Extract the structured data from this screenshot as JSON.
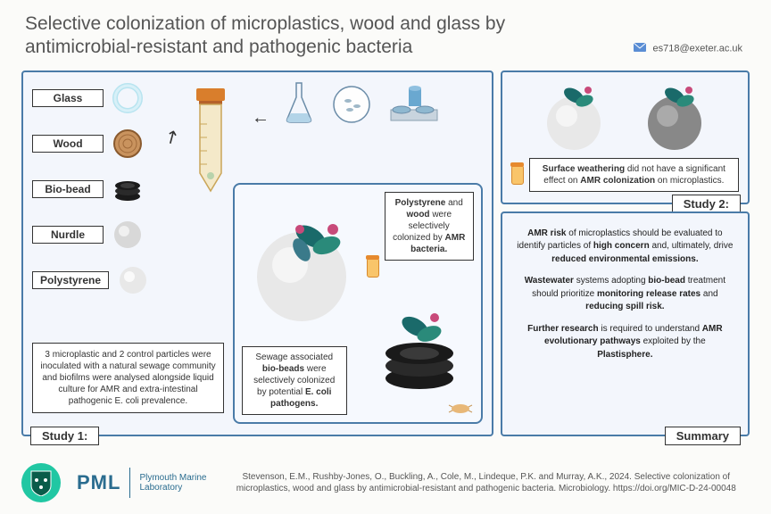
{
  "header": {
    "title_line1": "Selective colonization of microplastics, wood and glass by",
    "title_line2": "antimicrobial-resistant and pathogenic bacteria",
    "contact_email": "es718@exeter.ac.uk"
  },
  "colors": {
    "panel_border": "#4a7ba8",
    "panel_bg": "#f3f6fc",
    "page_bg": "#fbfbf9",
    "text": "#4a4a4a",
    "accent_teal": "#21c7a3",
    "pml_blue": "#2a6c8f",
    "tube_cap": "#d97e2c",
    "tube_body": "#f4e9c9"
  },
  "left_panel": {
    "label": "Study 1:",
    "materials": [
      "Glass",
      "Wood",
      "Bio-bead",
      "Nurdle",
      "Polystyrene"
    ],
    "material_icons": [
      "glass-ring",
      "wood-disc",
      "biobead-stack",
      "nurdle-sphere",
      "polystyrene-sphere"
    ],
    "note": "3 microplastic and 2 control particles were inoculated with a natural sewage community and biofilms were analysed alongside liquid culture for AMR and extra-intestinal pathogenic E. coli prevalence.",
    "inner_caption_top_html": "<span class='bold-text'>Polystyrene</span> and <span class='bold-text'>wood</span> were selectively colonized by <span class='bold-text'>AMR bacteria.</span>",
    "inner_caption_bottom_html": "Sewage associated <span class='bold-text'>bio-beads</span> were selectively colonized by potential <span class='bold-text'>E. coli pathogens.</span>"
  },
  "top_right_panel": {
    "label": "Study 2:",
    "caption_html": "<span class='bold-text'>Surface weathering</span> did not have a significant effect on <span class='bold-text'>AMR colonization</span> on microplastics."
  },
  "bottom_right_panel": {
    "label": "Summary",
    "p1_html": "<span class='bold-text'>AMR risk</span> of microplastics should be evaluated to identify particles of <span class='bold-text'>high concern</span> and, ultimately, drive <span class='bold-text'>reduced environmental emissions.</span>",
    "p2_html": "<span class='bold-text'>Wastewater</span> systems adopting <span class='bold-text'>bio-bead</span> treatment should prioritize <span class='bold-text'>monitoring release rates</span> and <span class='bold-text'>reducing spill risk.</span>",
    "p3_html": "<span class='bold-text'>Further research</span> is required to understand <span class='bold-text'>AMR evolutionary pathways</span> exploited by the <span class='bold-text'>Plastisphere.</span>"
  },
  "footer": {
    "pml_acronym": "PML",
    "pml_full_l1": "Plymouth Marine",
    "pml_full_l2": "Laboratory",
    "citation": "Stevenson, E.M., Rushby-Jones, O., Buckling, A., Cole, M., Lindeque, P.K. and Murray, A.K., 2024. Selective colonization of microplastics, wood and glass by antimicrobial-resistant and pathogenic bacteria. Microbiology. https://doi.org/MIC-D-24-00048"
  }
}
